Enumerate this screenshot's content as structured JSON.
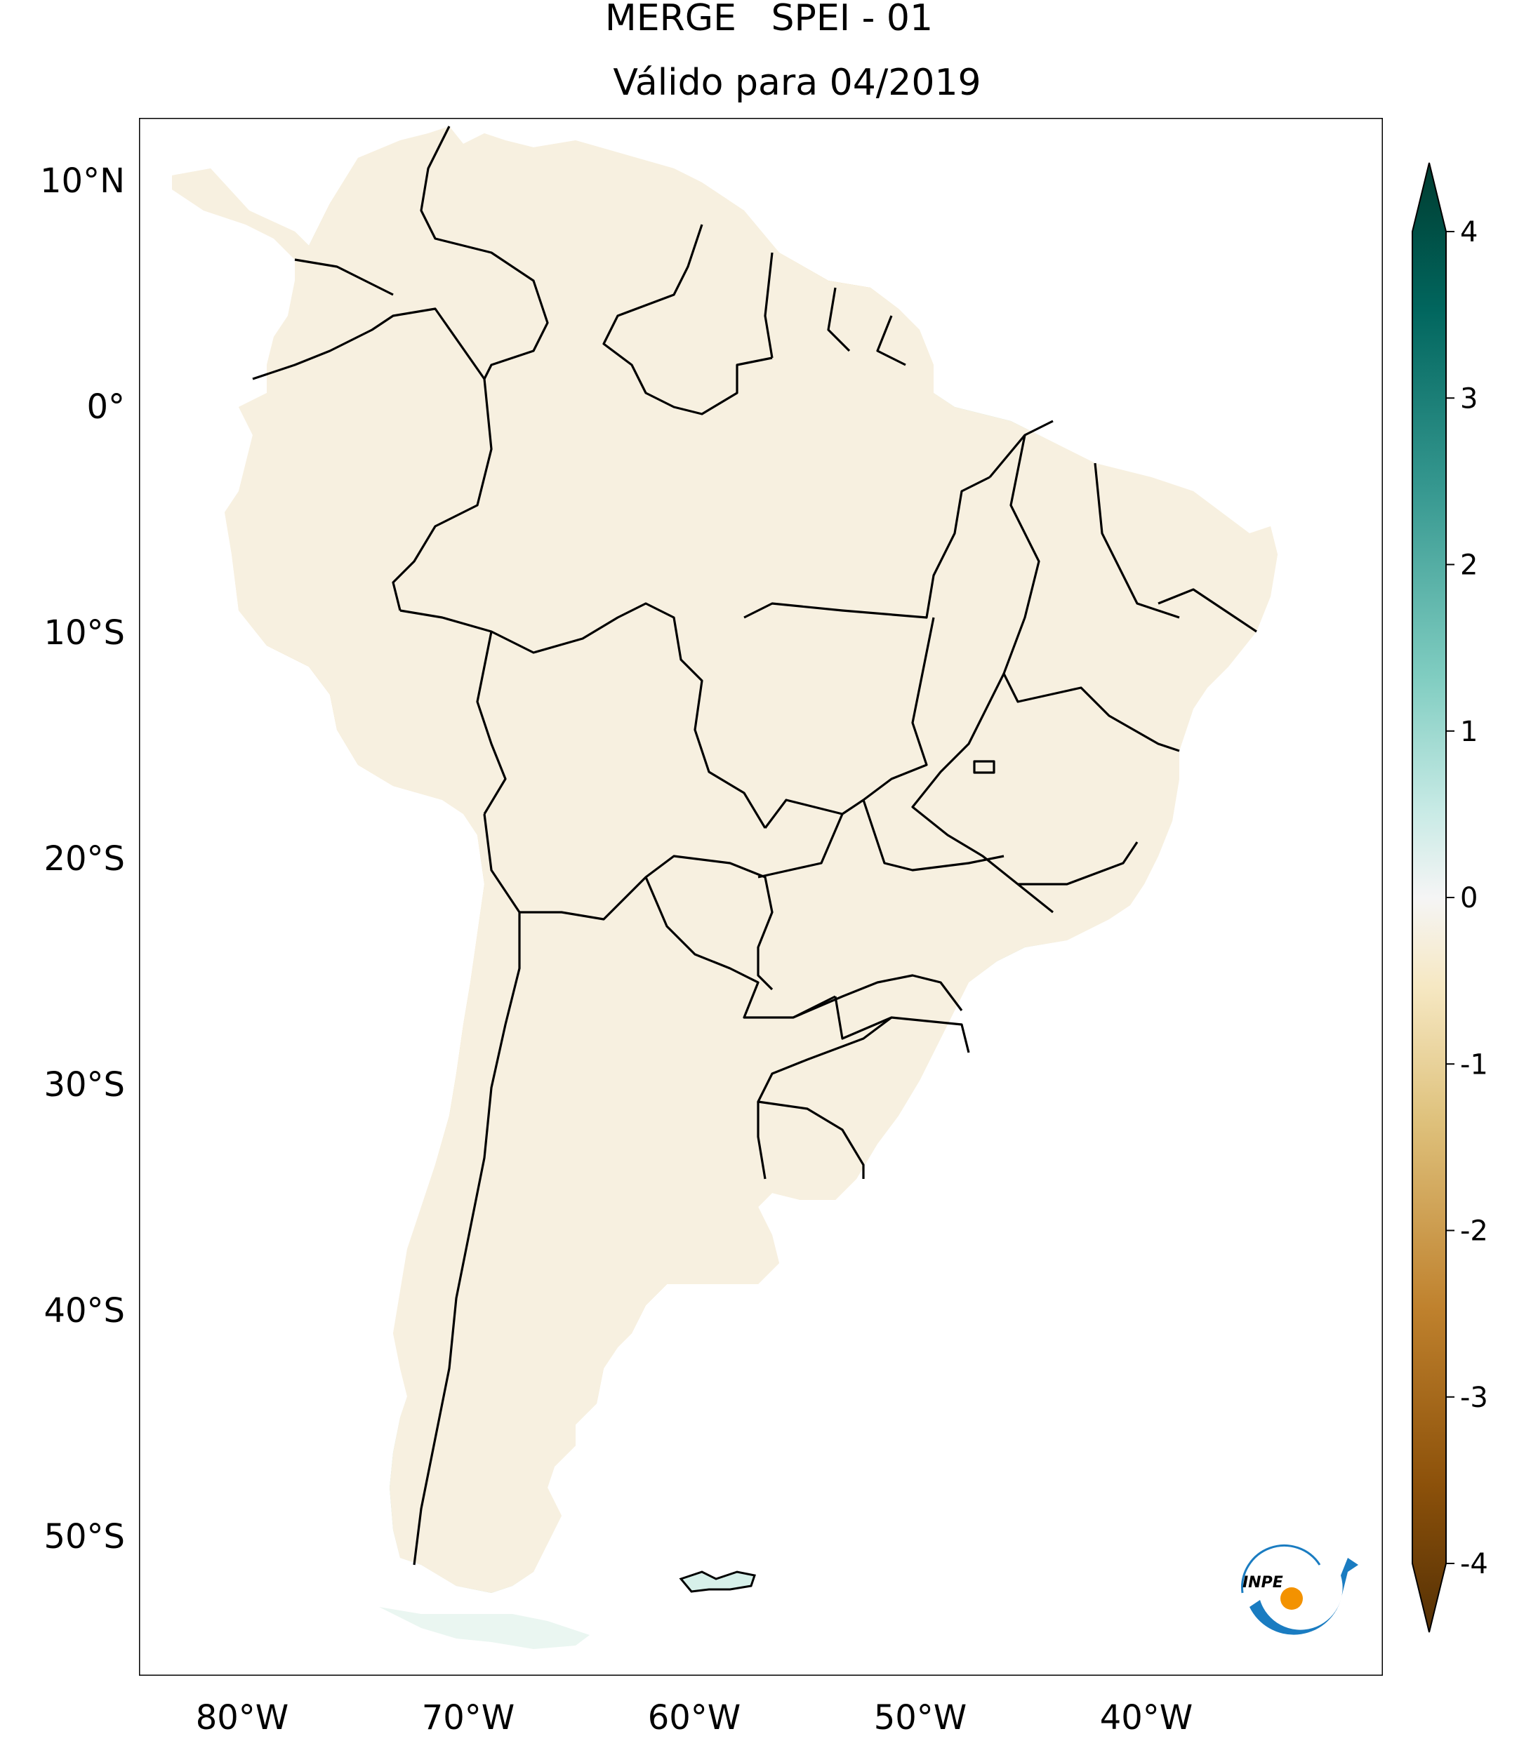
{
  "title": {
    "line1": "MERGE   SPEI - 01",
    "line2": "Válido para 04/2019"
  },
  "axes": {
    "lat_ticks": [
      "10°N",
      "0°",
      "10°S",
      "20°S",
      "30°S",
      "40°S",
      "50°S"
    ],
    "lon_ticks": [
      "80°W",
      "70°W",
      "60°W",
      "50°W",
      "40°W"
    ]
  },
  "colorbar": {
    "ticks": [
      "4",
      "3",
      "2",
      "1",
      "0",
      "-1",
      "-2",
      "-3",
      "-4"
    ],
    "range": [
      -4,
      4
    ],
    "colors": {
      "dark_brown": "#543005",
      "brown": "#8c510a",
      "tan": "#bf812d",
      "light_tan": "#dfc27d",
      "cream": "#f6e8c3",
      "white": "#f5f5f5",
      "light_teal": "#c7eae5",
      "teal": "#80cdc1",
      "dark_teal": "#35978f",
      "deeper_teal": "#01665e",
      "darkest_teal": "#003c30"
    }
  },
  "logo": {
    "text": "INPE"
  }
}
